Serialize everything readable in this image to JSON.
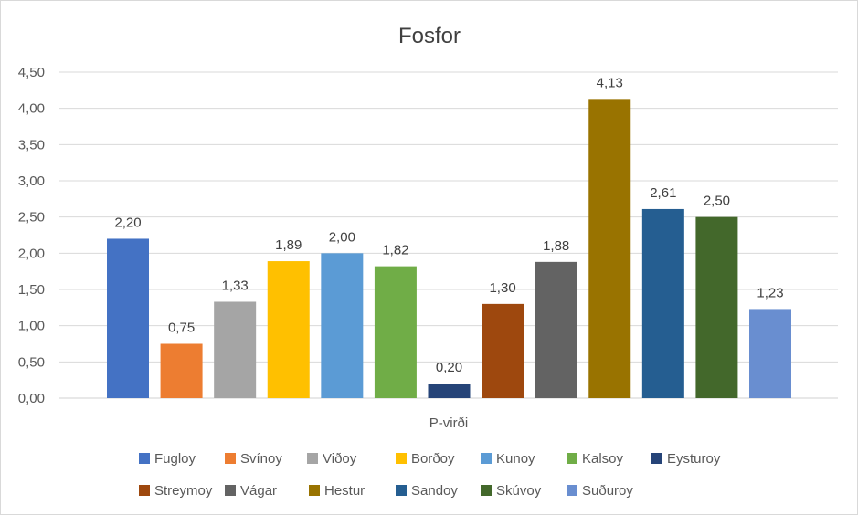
{
  "chart_data": {
    "type": "bar",
    "title": "Fosfor",
    "category_label": "P-virði",
    "xlabel": "",
    "ylabel": "",
    "ylim": [
      0,
      4.5
    ],
    "y_ticks": [
      "0,00",
      "0,50",
      "1,00",
      "1,50",
      "2,00",
      "2,50",
      "3,00",
      "3,50",
      "4,00",
      "4,50"
    ],
    "grid": true,
    "legend_position": "bottom",
    "series": [
      {
        "name": "Fugloy",
        "value": 2.2,
        "label": "2,20",
        "color": "#4472C4"
      },
      {
        "name": "Svínoy",
        "value": 0.75,
        "label": "0,75",
        "color": "#ED7D31"
      },
      {
        "name": "Viðoy",
        "value": 1.33,
        "label": "1,33",
        "color": "#A5A5A5"
      },
      {
        "name": "Borðoy",
        "value": 1.89,
        "label": "1,89",
        "color": "#FFC000"
      },
      {
        "name": "Kunoy",
        "value": 2.0,
        "label": "2,00",
        "color": "#5B9BD5"
      },
      {
        "name": "Kalsoy",
        "value": 1.82,
        "label": "1,82",
        "color": "#70AD47"
      },
      {
        "name": "Eysturoy",
        "value": 0.2,
        "label": "0,20",
        "color": "#264478"
      },
      {
        "name": "Streymoy",
        "value": 1.3,
        "label": "1,30",
        "color": "#9E480E"
      },
      {
        "name": "Vágar",
        "value": 1.88,
        "label": "1,88",
        "color": "#636363"
      },
      {
        "name": "Hestur",
        "value": 4.13,
        "label": "4,13",
        "color": "#997300"
      },
      {
        "name": "Sandoy",
        "value": 2.61,
        "label": "2,61",
        "color": "#255E91"
      },
      {
        "name": "Skúvoy",
        "value": 2.5,
        "label": "2,50",
        "color": "#43682B"
      },
      {
        "name": "Suðuroy",
        "value": 1.23,
        "label": "1,23",
        "color": "#698ED0"
      }
    ]
  }
}
